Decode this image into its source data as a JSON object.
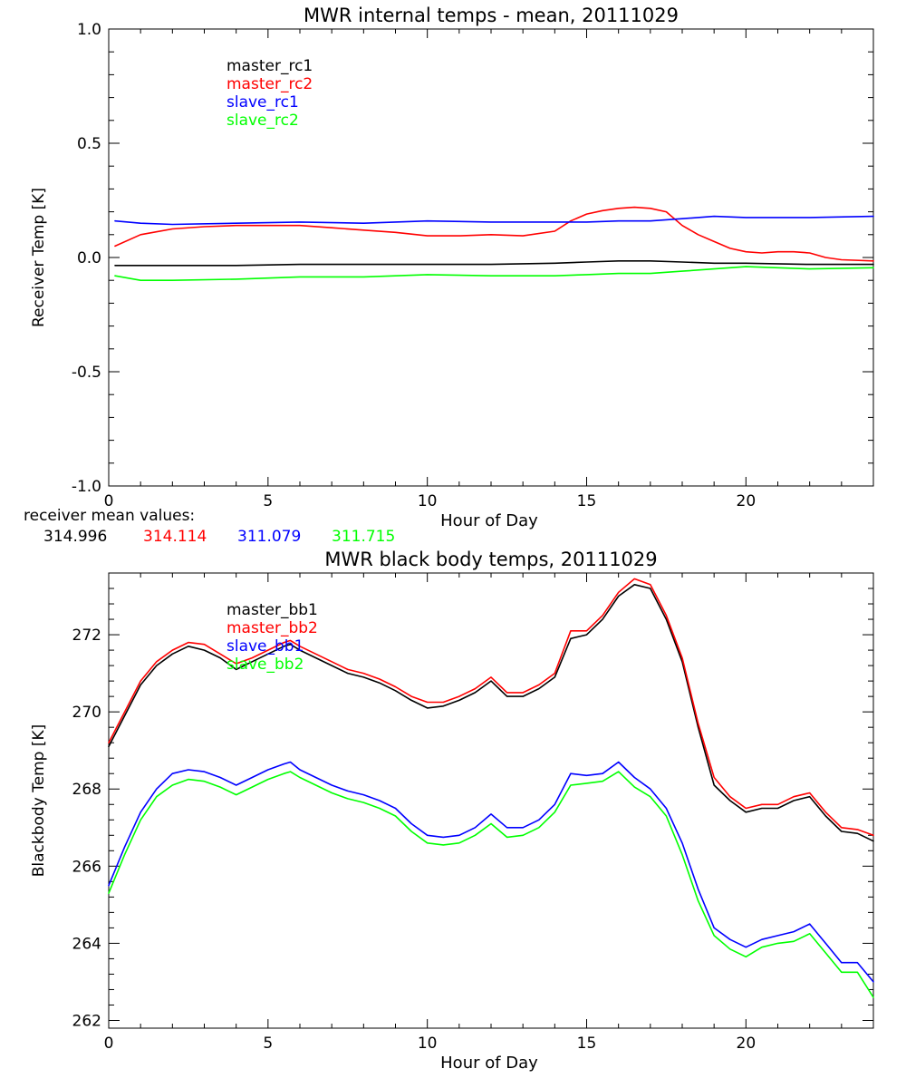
{
  "chart_data": [
    {
      "type": "line",
      "title": "MWR internal temps - mean, 20111029",
      "xlabel": "Hour of Day",
      "ylabel": "Receiver Temp [K]",
      "xlim": [
        0,
        24
      ],
      "ylim": [
        -1.0,
        1.0
      ],
      "x_major_ticks": [
        0,
        5,
        10,
        15,
        20
      ],
      "y_major_ticks": [
        -1.0,
        -0.5,
        0.0,
        0.5,
        1.0
      ],
      "x_tick_labels": [
        "0",
        "5",
        "10",
        "15",
        "20"
      ],
      "y_tick_labels": [
        "-1.0",
        "-0.5",
        "0.0",
        "0.5",
        "1.0"
      ],
      "grid": false,
      "legend_position": "top-left",
      "series": [
        {
          "name": "master_rc1",
          "color": "#000000",
          "x": [
            0.2,
            2,
            4,
            6,
            8,
            10,
            12,
            14,
            15,
            16,
            17,
            18,
            19,
            20,
            22,
            24
          ],
          "y": [
            -0.035,
            -0.035,
            -0.035,
            -0.03,
            -0.03,
            -0.03,
            -0.03,
            -0.025,
            -0.02,
            -0.015,
            -0.015,
            -0.02,
            -0.025,
            -0.025,
            -0.03,
            -0.03
          ]
        },
        {
          "name": "master_rc2",
          "color": "#ff0000",
          "x": [
            0.2,
            1,
            2,
            3,
            4,
            5,
            6,
            7,
            8,
            9,
            10,
            11,
            12,
            13,
            14,
            14.5,
            15,
            15.5,
            16,
            16.5,
            17,
            17.5,
            18,
            18.5,
            19,
            19.5,
            20,
            20.5,
            21,
            21.5,
            22,
            22.5,
            23,
            24
          ],
          "y": [
            0.05,
            0.1,
            0.125,
            0.135,
            0.14,
            0.14,
            0.14,
            0.13,
            0.12,
            0.11,
            0.095,
            0.095,
            0.1,
            0.095,
            0.115,
            0.16,
            0.19,
            0.205,
            0.215,
            0.22,
            0.215,
            0.2,
            0.14,
            0.1,
            0.07,
            0.04,
            0.025,
            0.02,
            0.025,
            0.025,
            0.02,
            0.0,
            -0.01,
            -0.015
          ]
        },
        {
          "name": "slave_rc1",
          "color": "#0000ff",
          "x": [
            0.2,
            1,
            2,
            4,
            6,
            8,
            10,
            12,
            14,
            15,
            16,
            17,
            18,
            19,
            20,
            22,
            24
          ],
          "y": [
            0.16,
            0.15,
            0.145,
            0.15,
            0.155,
            0.15,
            0.16,
            0.155,
            0.155,
            0.155,
            0.16,
            0.16,
            0.17,
            0.18,
            0.175,
            0.175,
            0.18
          ]
        },
        {
          "name": "slave_rc2",
          "color": "#00ff00",
          "x": [
            0.2,
            1,
            2,
            4,
            6,
            8,
            10,
            12,
            14,
            15,
            16,
            17,
            18,
            19,
            20,
            22,
            24
          ],
          "y": [
            -0.08,
            -0.1,
            -0.1,
            -0.095,
            -0.085,
            -0.085,
            -0.075,
            -0.08,
            -0.08,
            -0.075,
            -0.07,
            -0.07,
            -0.06,
            -0.05,
            -0.04,
            -0.05,
            -0.045
          ]
        }
      ],
      "mean_values": {
        "label": "receiver mean values:",
        "values": [
          {
            "text": "314.996",
            "color": "#000000"
          },
          {
            "text": "314.114",
            "color": "#ff0000"
          },
          {
            "text": "311.079",
            "color": "#0000ff"
          },
          {
            "text": "311.715",
            "color": "#00ff00"
          }
        ]
      }
    },
    {
      "type": "line",
      "title": "MWR black body temps, 20111029",
      "xlabel": "Hour of Day",
      "ylabel": "Blackbody Temp [K]",
      "xlim": [
        0,
        24
      ],
      "ylim": [
        261.8,
        273.6
      ],
      "x_major_ticks": [
        0,
        5,
        10,
        15,
        20
      ],
      "y_major_ticks": [
        262,
        264,
        266,
        268,
        270,
        272
      ],
      "x_tick_labels": [
        "0",
        "5",
        "10",
        "15",
        "20"
      ],
      "y_tick_labels": [
        "262",
        "264",
        "266",
        "268",
        "270",
        "272"
      ],
      "grid": false,
      "legend_position": "top-left",
      "series": [
        {
          "name": "master_bb1",
          "color": "#000000",
          "x": [
            0,
            0.5,
            1,
            1.5,
            2,
            2.5,
            3,
            3.5,
            4,
            4.5,
            5,
            5.5,
            5.7,
            6,
            6.5,
            7,
            7.5,
            8,
            8.5,
            9,
            9.5,
            10,
            10.5,
            11,
            11.5,
            12,
            12.5,
            13,
            13.5,
            14,
            14.5,
            15,
            15.5,
            16,
            16.5,
            17,
            17.5,
            18,
            18.5,
            19,
            19.5,
            20,
            20.5,
            21,
            21.5,
            22,
            22.5,
            23,
            23.5,
            24
          ],
          "y": [
            269.1,
            269.9,
            270.7,
            271.2,
            271.5,
            271.7,
            271.6,
            271.4,
            271.1,
            271.3,
            271.5,
            271.7,
            271.75,
            271.6,
            271.4,
            271.2,
            271.0,
            270.9,
            270.75,
            270.55,
            270.3,
            270.1,
            270.15,
            270.3,
            270.5,
            270.8,
            270.4,
            270.4,
            270.6,
            270.9,
            271.9,
            272.0,
            272.4,
            273.0,
            273.3,
            273.2,
            272.4,
            271.3,
            269.6,
            268.1,
            267.7,
            267.4,
            267.5,
            267.5,
            267.7,
            267.8,
            267.3,
            266.9,
            266.85,
            266.65
          ]
        },
        {
          "name": "master_bb2",
          "color": "#ff0000",
          "x": [
            0,
            0.5,
            1,
            1.5,
            2,
            2.5,
            3,
            3.5,
            4,
            4.5,
            5,
            5.5,
            5.7,
            6,
            6.5,
            7,
            7.5,
            8,
            8.5,
            9,
            9.5,
            10,
            10.5,
            11,
            11.5,
            12,
            12.5,
            13,
            13.5,
            14,
            14.5,
            15,
            15.5,
            16,
            16.5,
            17,
            17.5,
            18,
            18.5,
            19,
            19.5,
            20,
            20.5,
            21,
            21.5,
            22,
            22.5,
            23,
            23.5,
            24
          ],
          "y": [
            269.2,
            270.0,
            270.8,
            271.3,
            271.6,
            271.8,
            271.75,
            271.5,
            271.25,
            271.4,
            271.6,
            271.8,
            271.85,
            271.7,
            271.5,
            271.3,
            271.1,
            271.0,
            270.85,
            270.65,
            270.4,
            270.25,
            270.25,
            270.4,
            270.6,
            270.9,
            270.5,
            270.5,
            270.7,
            271.0,
            272.1,
            272.1,
            272.5,
            273.1,
            273.45,
            273.3,
            272.5,
            271.4,
            269.7,
            268.3,
            267.8,
            267.5,
            267.6,
            267.6,
            267.8,
            267.9,
            267.4,
            267.0,
            266.95,
            266.8
          ]
        },
        {
          "name": "slave_bb1",
          "color": "#0000ff",
          "x": [
            0,
            0.5,
            1,
            1.5,
            2,
            2.5,
            3,
            3.5,
            4,
            4.5,
            5,
            5.5,
            5.7,
            6,
            6.5,
            7,
            7.5,
            8,
            8.5,
            9,
            9.5,
            10,
            10.5,
            11,
            11.5,
            12,
            12.5,
            13,
            13.5,
            14,
            14.5,
            15,
            15.5,
            16,
            16.5,
            17,
            17.5,
            18,
            18.5,
            19,
            19.5,
            20,
            20.5,
            21,
            21.5,
            22,
            22.5,
            23,
            23.5,
            24
          ],
          "y": [
            265.5,
            266.5,
            267.4,
            268.0,
            268.4,
            268.5,
            268.45,
            268.3,
            268.1,
            268.3,
            268.5,
            268.65,
            268.7,
            268.5,
            268.3,
            268.1,
            267.95,
            267.85,
            267.7,
            267.5,
            267.1,
            266.8,
            266.75,
            266.8,
            267.0,
            267.35,
            267.0,
            267.0,
            267.2,
            267.6,
            268.4,
            268.35,
            268.4,
            268.7,
            268.3,
            268.0,
            267.5,
            266.6,
            265.4,
            264.4,
            264.1,
            263.9,
            264.1,
            264.2,
            264.3,
            264.5,
            264.0,
            263.5,
            263.5,
            263.0
          ]
        },
        {
          "name": "slave_bb2",
          "color": "#00ff00",
          "x": [
            0,
            0.5,
            1,
            1.5,
            2,
            2.5,
            3,
            3.5,
            4,
            4.5,
            5,
            5.5,
            5.7,
            6,
            6.5,
            7,
            7.5,
            8,
            8.5,
            9,
            9.5,
            10,
            10.5,
            11,
            11.5,
            12,
            12.5,
            13,
            13.5,
            14,
            14.5,
            15,
            15.5,
            16,
            16.5,
            17,
            17.5,
            18,
            18.5,
            19,
            19.5,
            20,
            20.5,
            21,
            21.5,
            22,
            22.5,
            23,
            23.5,
            24
          ],
          "y": [
            265.3,
            266.3,
            267.2,
            267.8,
            268.1,
            268.25,
            268.2,
            268.05,
            267.85,
            268.05,
            268.25,
            268.4,
            268.45,
            268.3,
            268.1,
            267.9,
            267.75,
            267.65,
            267.5,
            267.3,
            266.9,
            266.6,
            266.55,
            266.6,
            266.8,
            267.1,
            266.75,
            266.8,
            267.0,
            267.4,
            268.1,
            268.15,
            268.2,
            268.45,
            268.05,
            267.8,
            267.3,
            266.3,
            265.1,
            264.2,
            263.85,
            263.65,
            263.9,
            264.0,
            264.05,
            264.25,
            263.75,
            263.25,
            263.25,
            262.6
          ]
        }
      ]
    }
  ]
}
